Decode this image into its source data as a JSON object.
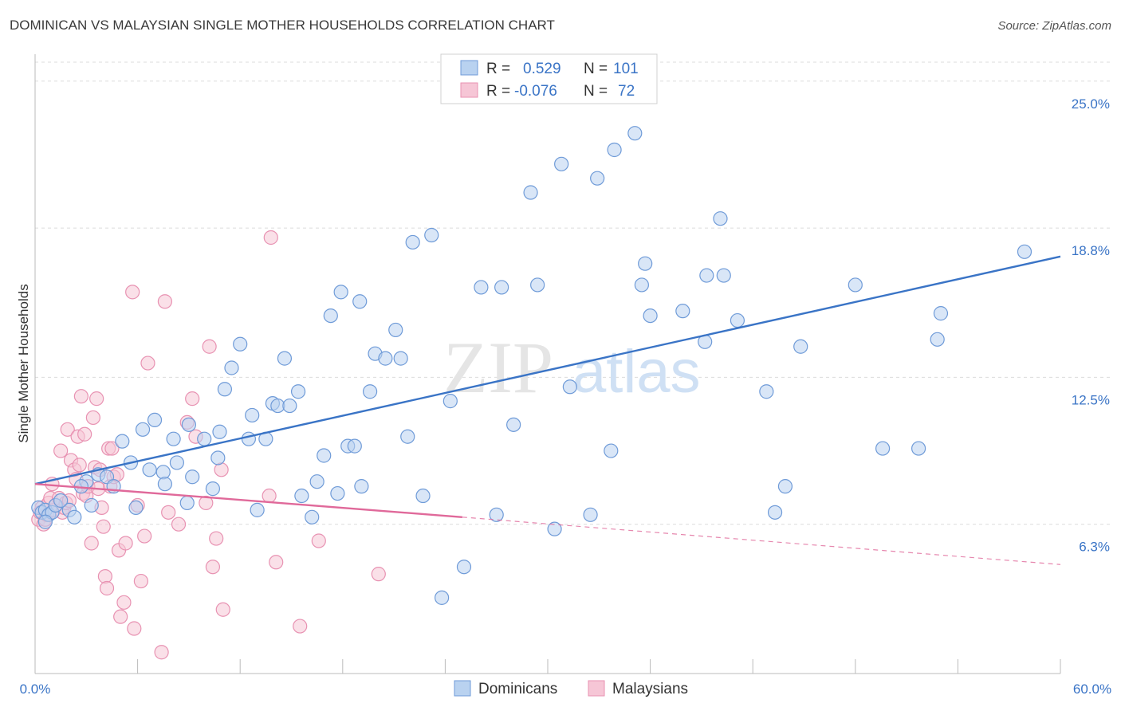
{
  "title": "DOMINICAN VS MALAYSIAN SINGLE MOTHER HOUSEHOLDS CORRELATION CHART",
  "source": "Source: ZipAtlas.com",
  "watermark": {
    "part1": "ZIP",
    "part2": "atlas"
  },
  "colors": {
    "blue": "#3a74c6",
    "blue_fill": "#b9d2f0",
    "blue_stroke": "#6f9bd8",
    "pink": "#e0699a",
    "pink_fill": "#f6c6d6",
    "pink_stroke": "#e892b2",
    "tick_label": "#3a74c6",
    "grid": "#dcdcdc"
  },
  "legend": {
    "rows": [
      {
        "r_label": "R =",
        "r_value": "0.529",
        "n_label": "N =",
        "n_value": "101"
      },
      {
        "r_label": "R =",
        "r_value": "-0.076",
        "n_label": "N =",
        "n_value": "72"
      }
    ]
  },
  "chart_data": {
    "type": "scatter",
    "xlabel": "",
    "ylabel": "Single Mother Households",
    "xlim": [
      0,
      60
    ],
    "ylim": [
      0,
      25.8
    ],
    "x_tick_labels": [
      "0.0%",
      "60.0%"
    ],
    "y_ticks": [
      6.3,
      12.5,
      18.8,
      25.0
    ],
    "y_tick_labels": [
      "6.3%",
      "12.5%",
      "18.8%",
      "25.0%"
    ],
    "grid": "horizontal dashed",
    "legend_placement": "top-center",
    "series": [
      {
        "name": "Dominicans",
        "color": "#3a74c6",
        "trend": {
          "x": [
            0,
            60
          ],
          "y": [
            8.0,
            17.6
          ],
          "style": "solid"
        },
        "points": [
          [
            0.2,
            7.0
          ],
          [
            0.4,
            6.8
          ],
          [
            0.6,
            6.9
          ],
          [
            0.8,
            6.7
          ],
          [
            1.0,
            6.8
          ],
          [
            1.2,
            7.1
          ],
          [
            2.0,
            6.9
          ],
          [
            2.3,
            6.6
          ],
          [
            3.0,
            8.1
          ],
          [
            3.3,
            7.1
          ],
          [
            3.7,
            8.4
          ],
          [
            4.2,
            8.3
          ],
          [
            4.6,
            7.9
          ],
          [
            5.1,
            9.8
          ],
          [
            5.6,
            8.9
          ],
          [
            5.9,
            7.0
          ],
          [
            6.3,
            10.3
          ],
          [
            6.7,
            8.6
          ],
          [
            7.0,
            10.7
          ],
          [
            7.5,
            8.5
          ],
          [
            7.6,
            8.0
          ],
          [
            8.1,
            9.9
          ],
          [
            8.3,
            8.9
          ],
          [
            8.9,
            7.2
          ],
          [
            9.0,
            10.5
          ],
          [
            9.2,
            8.3
          ],
          [
            9.9,
            9.9
          ],
          [
            10.4,
            7.8
          ],
          [
            10.7,
            9.1
          ],
          [
            10.8,
            10.2
          ],
          [
            11.1,
            12.0
          ],
          [
            11.5,
            12.9
          ],
          [
            12.0,
            13.9
          ],
          [
            12.5,
            9.9
          ],
          [
            12.7,
            10.9
          ],
          [
            13.0,
            6.9
          ],
          [
            13.5,
            9.9
          ],
          [
            13.9,
            11.4
          ],
          [
            14.2,
            11.3
          ],
          [
            14.6,
            13.3
          ],
          [
            14.9,
            11.3
          ],
          [
            15.4,
            11.9
          ],
          [
            15.6,
            7.5
          ],
          [
            16.2,
            6.6
          ],
          [
            16.5,
            8.1
          ],
          [
            16.9,
            9.2
          ],
          [
            17.3,
            15.1
          ],
          [
            17.7,
            7.6
          ],
          [
            17.9,
            16.1
          ],
          [
            18.3,
            9.6
          ],
          [
            18.7,
            9.6
          ],
          [
            19.0,
            15.7
          ],
          [
            19.1,
            7.9
          ],
          [
            19.6,
            11.9
          ],
          [
            19.9,
            13.5
          ],
          [
            20.5,
            13.3
          ],
          [
            21.1,
            14.5
          ],
          [
            21.4,
            13.3
          ],
          [
            21.8,
            10.0
          ],
          [
            22.1,
            18.2
          ],
          [
            22.7,
            7.5
          ],
          [
            23.2,
            18.5
          ],
          [
            23.8,
            3.2
          ],
          [
            24.3,
            11.5
          ],
          [
            25.1,
            4.5
          ],
          [
            26.1,
            16.3
          ],
          [
            27.0,
            6.7
          ],
          [
            27.3,
            16.3
          ],
          [
            28.0,
            10.5
          ],
          [
            29.0,
            20.3
          ],
          [
            29.4,
            16.4
          ],
          [
            30.4,
            6.1
          ],
          [
            30.8,
            21.5
          ],
          [
            31.3,
            12.1
          ],
          [
            32.5,
            6.7
          ],
          [
            32.9,
            20.9
          ],
          [
            33.7,
            9.4
          ],
          [
            33.9,
            22.1
          ],
          [
            35.1,
            22.8
          ],
          [
            35.5,
            16.4
          ],
          [
            35.7,
            17.3
          ],
          [
            36.0,
            15.1
          ],
          [
            37.9,
            15.3
          ],
          [
            39.2,
            14.0
          ],
          [
            39.3,
            16.8
          ],
          [
            40.3,
            16.8
          ],
          [
            40.1,
            19.2
          ],
          [
            41.1,
            14.9
          ],
          [
            42.8,
            11.9
          ],
          [
            43.3,
            6.8
          ],
          [
            43.9,
            7.9
          ],
          [
            44.8,
            13.8
          ],
          [
            48.0,
            16.4
          ],
          [
            49.6,
            9.5
          ],
          [
            51.7,
            9.5
          ],
          [
            52.8,
            14.1
          ],
          [
            53.0,
            15.2
          ],
          [
            57.9,
            17.8
          ],
          [
            0.6,
            6.4
          ],
          [
            1.5,
            7.3
          ],
          [
            2.7,
            7.9
          ]
        ]
      },
      {
        "name": "Malaysians",
        "color": "#e0699a",
        "trend": {
          "x": [
            0,
            25
          ],
          "y": [
            8.0,
            6.6
          ],
          "style": "solid",
          "extension": {
            "x": [
              25,
              60
            ],
            "y": [
              6.6,
              4.6
            ],
            "style": "dashed"
          }
        },
        "points": [
          [
            0.2,
            6.5
          ],
          [
            0.3,
            6.8
          ],
          [
            0.4,
            7.0
          ],
          [
            0.5,
            6.3
          ],
          [
            0.6,
            6.5
          ],
          [
            0.7,
            6.7
          ],
          [
            0.8,
            7.2
          ],
          [
            0.9,
            7.4
          ],
          [
            1.0,
            8.0
          ],
          [
            1.1,
            6.9
          ],
          [
            1.2,
            7.1
          ],
          [
            1.4,
            7.4
          ],
          [
            1.5,
            9.4
          ],
          [
            1.6,
            6.8
          ],
          [
            1.7,
            7.0
          ],
          [
            1.8,
            7.2
          ],
          [
            1.9,
            10.3
          ],
          [
            2.0,
            7.3
          ],
          [
            2.1,
            9.0
          ],
          [
            2.3,
            8.6
          ],
          [
            2.4,
            8.2
          ],
          [
            2.5,
            10.0
          ],
          [
            2.6,
            8.8
          ],
          [
            2.7,
            11.7
          ],
          [
            2.8,
            7.6
          ],
          [
            2.9,
            10.1
          ],
          [
            3.0,
            7.5
          ],
          [
            3.1,
            7.9
          ],
          [
            3.3,
            5.5
          ],
          [
            3.4,
            10.8
          ],
          [
            3.5,
            8.7
          ],
          [
            3.6,
            11.6
          ],
          [
            3.7,
            7.8
          ],
          [
            3.8,
            8.6
          ],
          [
            3.9,
            7.0
          ],
          [
            4.0,
            6.2
          ],
          [
            4.1,
            4.1
          ],
          [
            4.2,
            3.6
          ],
          [
            4.3,
            9.5
          ],
          [
            4.4,
            7.9
          ],
          [
            4.5,
            9.5
          ],
          [
            4.6,
            8.3
          ],
          [
            4.8,
            8.4
          ],
          [
            4.9,
            5.2
          ],
          [
            5.0,
            2.4
          ],
          [
            5.2,
            3.0
          ],
          [
            5.3,
            5.5
          ],
          [
            5.7,
            16.1
          ],
          [
            5.8,
            1.9
          ],
          [
            6.0,
            7.1
          ],
          [
            6.2,
            3.9
          ],
          [
            6.4,
            5.8
          ],
          [
            6.6,
            13.1
          ],
          [
            7.4,
            0.9
          ],
          [
            7.6,
            15.7
          ],
          [
            7.8,
            6.8
          ],
          [
            8.4,
            6.3
          ],
          [
            8.9,
            10.6
          ],
          [
            9.2,
            11.6
          ],
          [
            9.4,
            10.0
          ],
          [
            10.0,
            7.2
          ],
          [
            10.2,
            13.8
          ],
          [
            10.4,
            4.5
          ],
          [
            10.6,
            5.7
          ],
          [
            10.9,
            8.6
          ],
          [
            11.0,
            2.7
          ],
          [
            13.7,
            7.5
          ],
          [
            13.8,
            18.4
          ],
          [
            14.1,
            4.7
          ],
          [
            15.5,
            2.0
          ],
          [
            16.6,
            5.6
          ],
          [
            20.1,
            4.2
          ]
        ]
      }
    ]
  },
  "bottom_legend": {
    "items": [
      {
        "label": "Dominicans"
      },
      {
        "label": "Malaysians"
      }
    ]
  }
}
